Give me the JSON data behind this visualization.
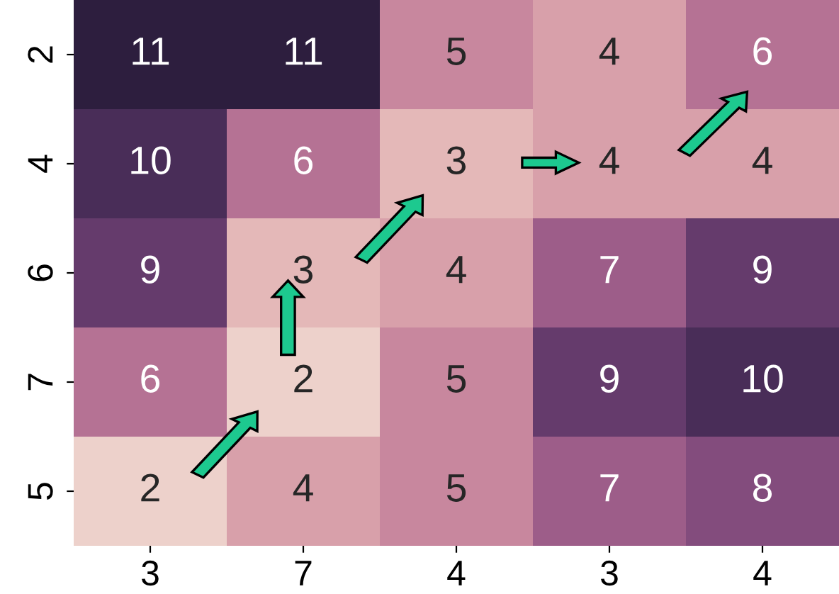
{
  "chart_data": {
    "type": "heatmap",
    "categories": [
      "3",
      "7",
      "4",
      "3",
      "4"
    ],
    "y_categories": [
      "2",
      "4",
      "6",
      "7",
      "5"
    ],
    "cells": [
      [
        11,
        11,
        5,
        4,
        6
      ],
      [
        10,
        6,
        3,
        4,
        4
      ],
      [
        9,
        3,
        4,
        7,
        9
      ],
      [
        6,
        2,
        5,
        9,
        10
      ],
      [
        2,
        4,
        5,
        7,
        8
      ]
    ],
    "data_labels": true
  }
}
